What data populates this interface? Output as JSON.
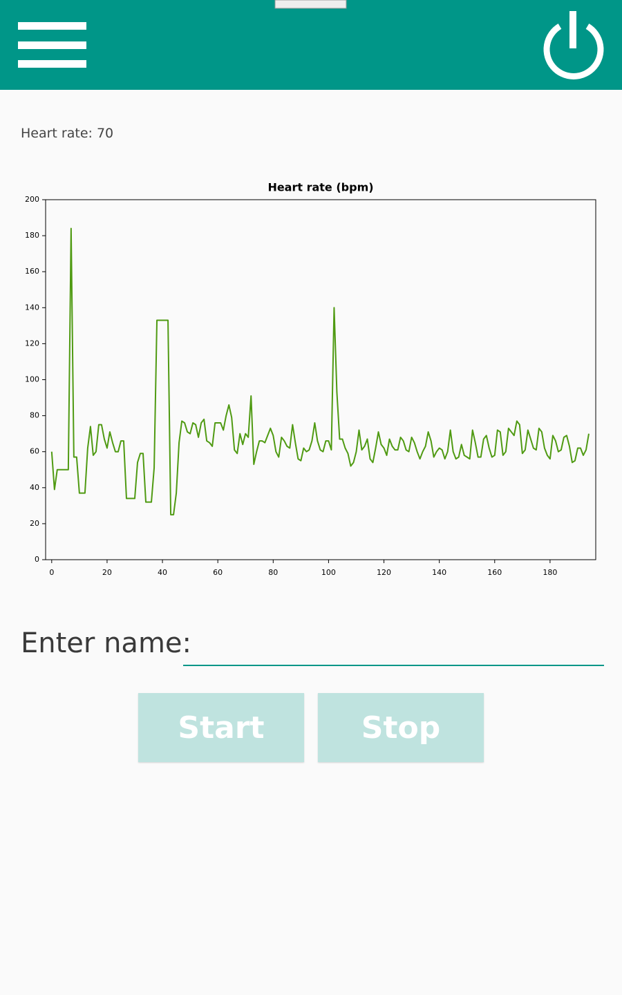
{
  "status": {
    "heart_rate": "Heart rate: 70"
  },
  "chart_data": {
    "type": "line",
    "title": "Heart rate (bpm)",
    "color": "#4f9a12",
    "x": [
      0,
      1,
      2,
      3,
      4,
      5,
      6,
      7,
      8,
      9,
      10,
      11,
      12,
      13,
      14,
      15,
      16,
      17,
      18,
      19,
      20,
      21,
      22,
      23,
      24,
      25,
      26,
      27,
      28,
      29,
      30,
      31,
      32,
      33,
      34,
      35,
      36,
      37,
      38,
      39,
      40,
      41,
      42,
      43,
      44,
      45,
      46,
      47,
      48,
      49,
      50,
      51,
      52,
      53,
      54,
      55,
      56,
      57,
      58,
      59,
      60,
      61,
      62,
      63,
      64,
      65,
      66,
      67,
      68,
      69,
      70,
      71,
      72,
      73,
      74,
      75,
      76,
      77,
      78,
      79,
      80,
      81,
      82,
      83,
      84,
      85,
      86,
      87,
      88,
      89,
      90,
      91,
      92,
      93,
      94,
      95,
      96,
      97,
      98,
      99,
      100,
      101,
      102,
      103,
      104,
      105,
      106,
      107,
      108,
      109,
      110,
      111,
      112,
      113,
      114,
      115,
      116,
      117,
      118,
      119,
      120,
      121,
      122,
      123,
      124,
      125,
      126,
      127,
      128,
      129,
      130,
      131,
      132,
      133,
      134,
      135,
      136,
      137,
      138,
      139,
      140,
      141,
      142,
      143,
      144,
      145,
      146,
      147,
      148,
      149,
      150,
      151,
      152,
      153,
      154,
      155,
      156,
      157,
      158,
      159,
      160,
      161,
      162,
      163,
      164,
      165,
      166,
      167,
      168,
      169,
      170,
      171,
      172,
      173,
      174,
      175,
      176,
      177,
      178,
      179,
      180,
      181,
      182,
      183,
      184,
      185,
      186,
      187,
      188,
      189,
      190,
      191,
      192,
      193,
      194
    ],
    "values": [
      60,
      39,
      50,
      50,
      50,
      50,
      50,
      184,
      57,
      57,
      37,
      37,
      37,
      62,
      74,
      58,
      60,
      75,
      75,
      67,
      62,
      71,
      65,
      60,
      60,
      66,
      66,
      34,
      34,
      34,
      34,
      54,
      59,
      59,
      32,
      32,
      32,
      51,
      133,
      133,
      133,
      133,
      133,
      25,
      25,
      37,
      65,
      77,
      76,
      71,
      70,
      76,
      75,
      68,
      76,
      78,
      66,
      65,
      63,
      76,
      76,
      76,
      72,
      80,
      86,
      79,
      61,
      59,
      70,
      64,
      70,
      68,
      91,
      53,
      60,
      66,
      66,
      65,
      69,
      73,
      69,
      60,
      57,
      68,
      66,
      63,
      62,
      75,
      65,
      56,
      55,
      62,
      60,
      61,
      66,
      76,
      66,
      61,
      60,
      66,
      66,
      61,
      140,
      93,
      67,
      67,
      62,
      59,
      52,
      54,
      60,
      72,
      61,
      63,
      67,
      56,
      54,
      62,
      71,
      64,
      62,
      58,
      67,
      63,
      61,
      61,
      68,
      66,
      61,
      60,
      68,
      65,
      60,
      56,
      60,
      63,
      71,
      66,
      57,
      60,
      62,
      61,
      56,
      60,
      72,
      60,
      56,
      57,
      64,
      58,
      57,
      56,
      72,
      65,
      57,
      57,
      67,
      69,
      62,
      57,
      58,
      72,
      71,
      58,
      60,
      73,
      71,
      69,
      77,
      75,
      59,
      61,
      72,
      67,
      62,
      61,
      73,
      71,
      62,
      58,
      56,
      69,
      66,
      60,
      61,
      68,
      69,
      63,
      54,
      55,
      62,
      62,
      58,
      61,
      70
    ],
    "xlim": [
      -2.2,
      196.5
    ],
    "ylim": [
      0,
      200
    ],
    "xticks": [
      0,
      20,
      40,
      60,
      80,
      100,
      120,
      140,
      160,
      180
    ],
    "yticks": [
      0,
      20,
      40,
      60,
      80,
      100,
      120,
      140,
      160,
      180,
      200
    ]
  },
  "form": {
    "name_label": "Enter name:",
    "buttons": [
      "Start",
      "Stop"
    ]
  }
}
